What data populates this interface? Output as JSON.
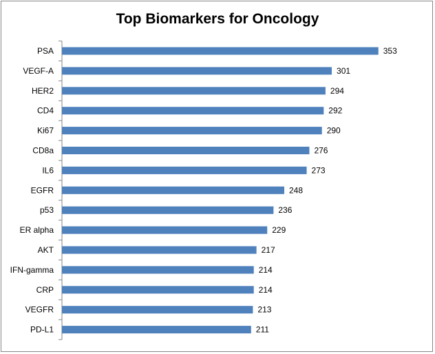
{
  "chart_data": {
    "type": "bar",
    "orientation": "horizontal",
    "title": "Top Biomarkers for Oncology",
    "xlabel": "",
    "ylabel": "",
    "categories": [
      "PSA",
      "VEGF-A",
      "HER2",
      "CD4",
      "Ki67",
      "CD8a",
      "IL6",
      "EGFR",
      "p53",
      "ER alpha",
      "AKT",
      "IFN-gamma",
      "CRP",
      "VEGFR",
      "PD-L1"
    ],
    "values": [
      353,
      301,
      294,
      292,
      290,
      276,
      273,
      248,
      236,
      229,
      217,
      214,
      214,
      213,
      211
    ],
    "data_labels": true,
    "grid": false,
    "legend": "none",
    "bar_color": "#4F81BD",
    "axis_color": "#868686"
  }
}
